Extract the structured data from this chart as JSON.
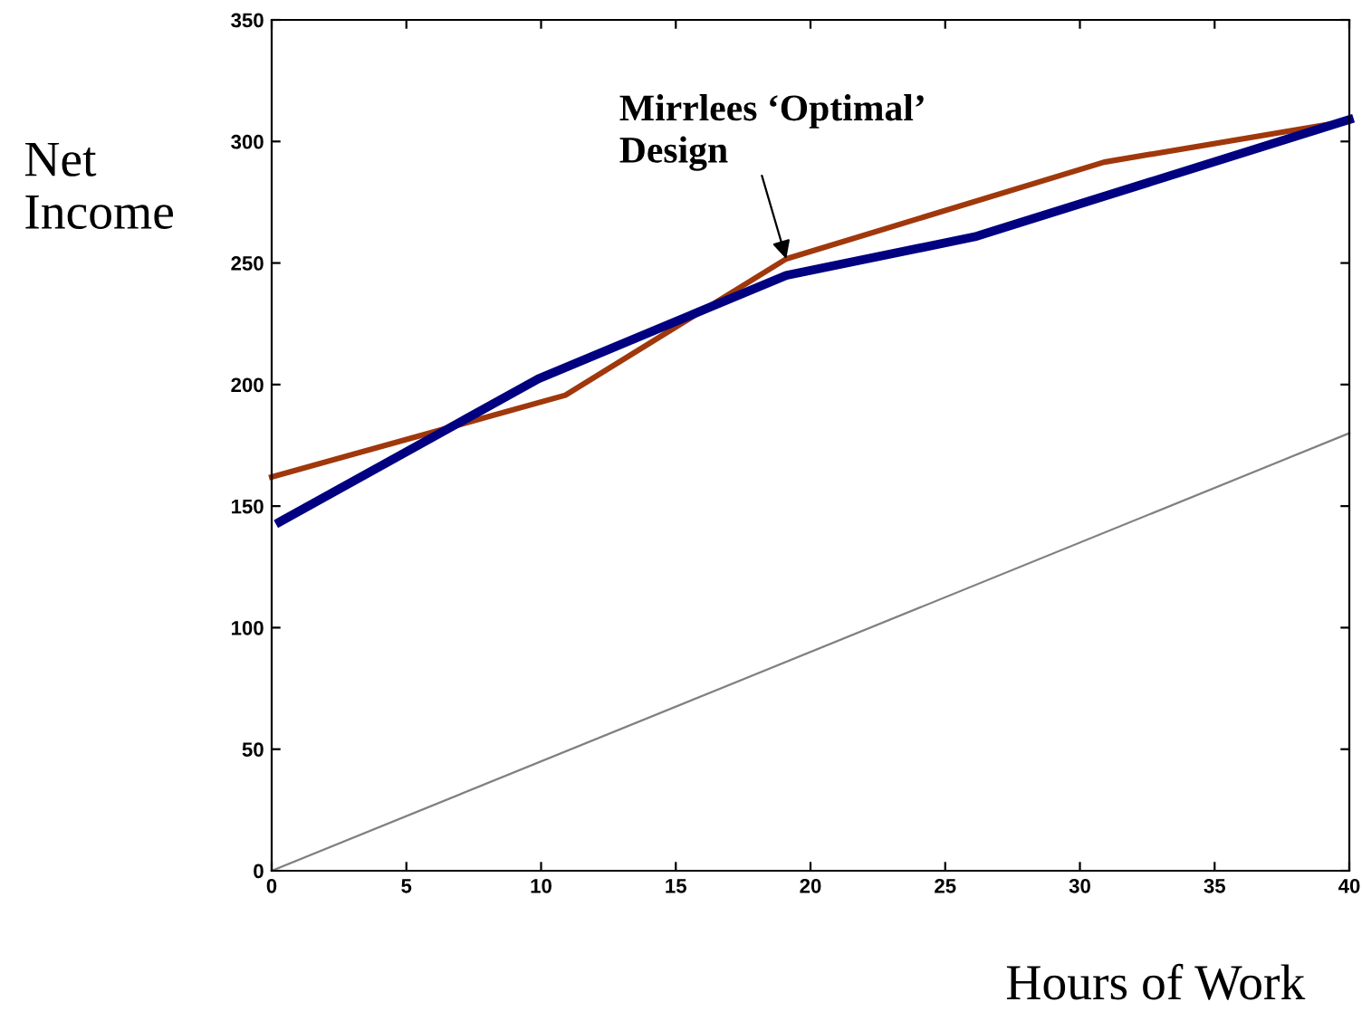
{
  "chart_data": {
    "type": "line",
    "xlabel": "Hours of Work",
    "ylabel": "Net\nIncome",
    "xlim": [
      0,
      40
    ],
    "ylim": [
      0,
      350
    ],
    "xticks": [
      0,
      5,
      10,
      15,
      20,
      25,
      30,
      35,
      40
    ],
    "yticks": [
      0,
      50,
      100,
      150,
      200,
      250,
      300,
      350
    ],
    "grid": false,
    "legend": false,
    "marker": "none",
    "line_style": "solid",
    "series": [
      {
        "color": "#808080",
        "x": [
          0,
          40
        ],
        "values": [
          0,
          180
        ]
      },
      {
        "color": "#a0380c",
        "x": [
          0,
          10.9,
          19.1,
          30.9,
          40
        ],
        "values": [
          162,
          195.6,
          251.7,
          291.5,
          308.5
        ]
      },
      {
        "color": "#000080",
        "x": [
          0.3,
          9.9,
          19.1,
          26.1,
          40
        ],
        "values": [
          143.5,
          202.4,
          244.9,
          260.8,
          309
        ]
      }
    ],
    "annotations": [
      {
        "text": "Mirrlees ‘Optimal’\nDesign",
        "x": 19.1,
        "y": 251.7
      }
    ]
  }
}
